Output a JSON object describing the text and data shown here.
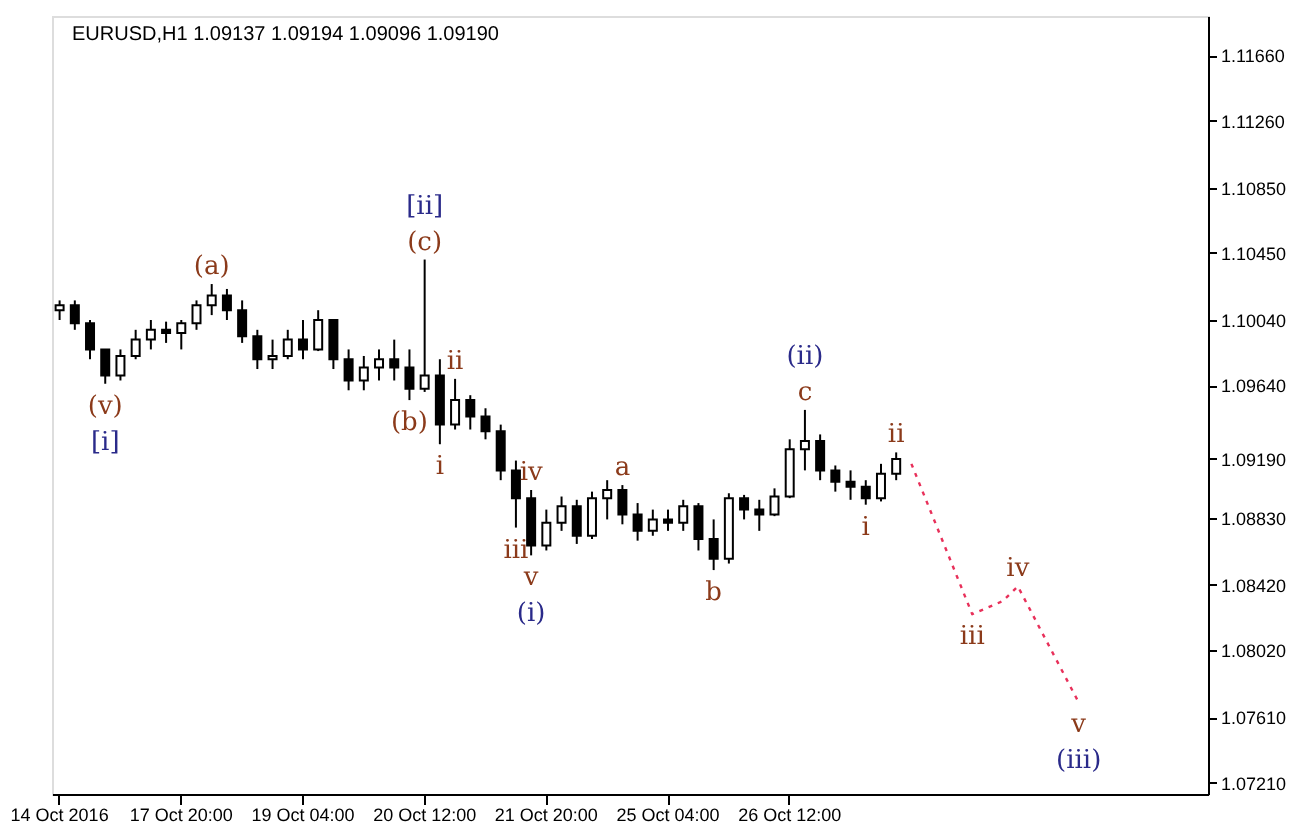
{
  "chart_data": {
    "type": "candlestick",
    "title": "EURUSD,H1 1.09137 1.09194 1.09096 1.09190",
    "categories": [
      "14 Oct 2016",
      null,
      null,
      null,
      null,
      null,
      null,
      null,
      "17 Oct 20:00",
      null,
      null,
      null,
      null,
      null,
      null,
      null,
      "19 Oct 04:00",
      null,
      null,
      null,
      null,
      null,
      null,
      null,
      "20 Oct 12:00",
      null,
      null,
      null,
      null,
      null,
      null,
      null,
      "21 Oct 20:00",
      null,
      null,
      null,
      null,
      null,
      null,
      null,
      "25 Oct 04:00",
      null,
      null,
      null,
      null,
      null,
      null,
      null,
      "26 Oct 12:00",
      null,
      null,
      null,
      null,
      null,
      null,
      null,
      null,
      null,
      null,
      null,
      null,
      null,
      null,
      null,
      null,
      null,
      null,
      null,
      null,
      null,
      null,
      null,
      null,
      null,
      null,
      null
    ],
    "ohlc": [
      [
        1.101,
        1.1016,
        1.1004,
        1.1013
      ],
      [
        1.1013,
        1.1016,
        1.0998,
        1.1002
      ],
      [
        1.1002,
        1.1004,
        1.098,
        1.0986
      ],
      [
        1.0986,
        1.0986,
        1.0965,
        1.097
      ],
      [
        1.097,
        1.0986,
        1.0967,
        1.0982
      ],
      [
        1.0982,
        1.0998,
        1.098,
        1.0992
      ],
      [
        1.0992,
        1.1004,
        1.0986,
        1.0998
      ],
      [
        1.0998,
        1.1003,
        1.099,
        1.0996
      ],
      [
        1.0996,
        1.1004,
        1.0986,
        1.1002
      ],
      [
        1.1002,
        1.1016,
        1.0998,
        1.1013
      ],
      [
        1.1013,
        1.1026,
        1.1007,
        1.1019
      ],
      [
        1.1019,
        1.1023,
        1.1004,
        1.101
      ],
      [
        1.101,
        1.1016,
        1.099,
        1.0994
      ],
      [
        1.0994,
        1.0998,
        1.0974,
        1.098
      ],
      [
        1.098,
        1.0992,
        1.0974,
        1.0982
      ],
      [
        1.0982,
        1.0998,
        1.098,
        1.0992
      ],
      [
        1.0992,
        1.1004,
        1.098,
        1.0986
      ],
      [
        1.0986,
        1.101,
        1.0985,
        1.1004
      ],
      [
        1.1004,
        1.1004,
        1.0974,
        1.098
      ],
      [
        1.098,
        1.0986,
        1.0961,
        1.0967
      ],
      [
        1.0967,
        1.0982,
        1.0961,
        1.0975
      ],
      [
        1.0975,
        1.0986,
        1.0967,
        1.098
      ],
      [
        1.098,
        1.0992,
        1.0967,
        1.0975
      ],
      [
        1.0975,
        1.0986,
        1.0955,
        1.0962
      ],
      [
        1.0962,
        1.1041,
        1.096,
        1.097
      ],
      [
        1.097,
        1.098,
        1.0928,
        1.094
      ],
      [
        1.094,
        1.0968,
        1.0937,
        1.0955
      ],
      [
        1.0955,
        1.0958,
        1.0937,
        1.0945
      ],
      [
        1.0945,
        1.095,
        1.0931,
        1.0936
      ],
      [
        1.0936,
        1.094,
        1.0906,
        1.0912
      ],
      [
        1.0912,
        1.0918,
        1.0877,
        1.0895
      ],
      [
        1.0895,
        1.09,
        1.086,
        1.0866
      ],
      [
        1.0866,
        1.0888,
        1.0863,
        1.088
      ],
      [
        1.088,
        1.0896,
        1.0875,
        1.089
      ],
      [
        1.089,
        1.0894,
        1.0867,
        1.0872
      ],
      [
        1.0872,
        1.0899,
        1.087,
        1.0895
      ],
      [
        1.0895,
        1.0906,
        1.0882,
        1.09
      ],
      [
        1.09,
        1.0903,
        1.0879,
        1.0885
      ],
      [
        1.0885,
        1.0892,
        1.0869,
        1.0875
      ],
      [
        1.0875,
        1.0888,
        1.0872,
        1.0882
      ],
      [
        1.0882,
        1.0888,
        1.0875,
        1.088
      ],
      [
        1.088,
        1.0894,
        1.0875,
        1.089
      ],
      [
        1.089,
        1.0892,
        1.0863,
        1.087
      ],
      [
        1.087,
        1.0882,
        1.0851,
        1.0858
      ],
      [
        1.0858,
        1.0898,
        1.0855,
        1.0895
      ],
      [
        1.0895,
        1.0897,
        1.0882,
        1.0888
      ],
      [
        1.0888,
        1.0894,
        1.0875,
        1.0885
      ],
      [
        1.0885,
        1.0901,
        1.0884,
        1.0896
      ],
      [
        1.0896,
        1.0931,
        1.0895,
        1.0925
      ],
      [
        1.0925,
        1.0949,
        1.0912,
        1.093
      ],
      [
        1.093,
        1.0934,
        1.0906,
        1.0912
      ],
      [
        1.0912,
        1.0915,
        1.0899,
        1.0905
      ],
      [
        1.0905,
        1.0912,
        1.0894,
        1.0902
      ],
      [
        1.0902,
        1.0906,
        1.0891,
        1.0895
      ],
      [
        1.0895,
        1.0916,
        1.0893,
        1.091
      ],
      [
        1.091,
        1.0923,
        1.0906,
        1.0919
      ],
      null,
      null,
      null,
      null,
      null,
      null,
      null,
      null,
      null,
      null,
      null,
      null,
      null,
      null,
      null,
      null,
      null,
      null,
      null,
      null
    ],
    "series": [
      {
        "type": "line",
        "color": "#e8305a",
        "line_style": "dotted",
        "values": [
          null,
          null,
          null,
          null,
          null,
          null,
          null,
          null,
          null,
          null,
          null,
          null,
          null,
          null,
          null,
          null,
          null,
          null,
          null,
          null,
          null,
          null,
          null,
          null,
          null,
          null,
          null,
          null,
          null,
          null,
          null,
          null,
          null,
          null,
          null,
          null,
          null,
          null,
          null,
          null,
          null,
          null,
          null,
          null,
          null,
          null,
          null,
          null,
          null,
          null,
          null,
          null,
          null,
          null,
          null,
          null,
          1.0916,
          null,
          null,
          null,
          1.0824,
          null,
          1.0832,
          1.0841,
          null,
          null,
          null,
          1.077,
          null,
          null,
          null,
          null,
          null,
          null,
          null,
          null
        ]
      }
    ],
    "ylim": [
      1.0714,
      1.119
    ],
    "yticks": [
      {
        "value": 1.1166,
        "label": "1.11660"
      },
      {
        "value": 1.1126,
        "label": "1.11260"
      },
      {
        "value": 1.1085,
        "label": "1.10850"
      },
      {
        "value": 1.1045,
        "label": "1.10450"
      },
      {
        "value": 1.1004,
        "label": "1.10040"
      },
      {
        "value": 1.0964,
        "label": "1.09640"
      },
      {
        "value": 1.0919,
        "label": "1.09190"
      },
      {
        "value": 1.0883,
        "label": "1.08830"
      },
      {
        "value": 1.0842,
        "label": "1.08420"
      },
      {
        "value": 1.0802,
        "label": "1.08020"
      },
      {
        "value": 1.0761,
        "label": "1.07610"
      },
      {
        "value": 1.0721,
        "label": "1.07210"
      }
    ],
    "grid": false,
    "annotations": [
      {
        "text": "(c)",
        "y": 1.1041
      },
      {
        "text": "[ii]",
        "y": 1.1041
      },
      {
        "text": "(a)",
        "y": 1.1026
      },
      {
        "text": "(v)",
        "y": 1.0965
      },
      {
        "text": "[i]",
        "y": 1.0965
      },
      {
        "text": "(b)",
        "y": 1.0955
      },
      {
        "text": "ii",
        "y": 1.0968
      },
      {
        "text": "i",
        "y": 1.0928
      },
      {
        "text": "iv",
        "y": 1.09
      },
      {
        "text": "iii",
        "y": 1.0877
      },
      {
        "text": "v",
        "y": 1.086
      },
      {
        "text": "(i)",
        "y": 1.086
      },
      {
        "text": "a",
        "y": 1.0903
      },
      {
        "text": "b",
        "y": 1.0851
      },
      {
        "text": "c",
        "y": 1.0949
      },
      {
        "text": "(ii)",
        "y": 1.0949
      },
      {
        "text": "i",
        "y": 1.0891
      },
      {
        "text": "ii",
        "y": 1.0923
      },
      {
        "text": "iii",
        "y": 1.0824
      },
      {
        "text": "iv",
        "y": 1.0841
      },
      {
        "text": "v",
        "y": 1.077
      },
      {
        "text": "(iii)",
        "y": 1.077
      }
    ]
  }
}
